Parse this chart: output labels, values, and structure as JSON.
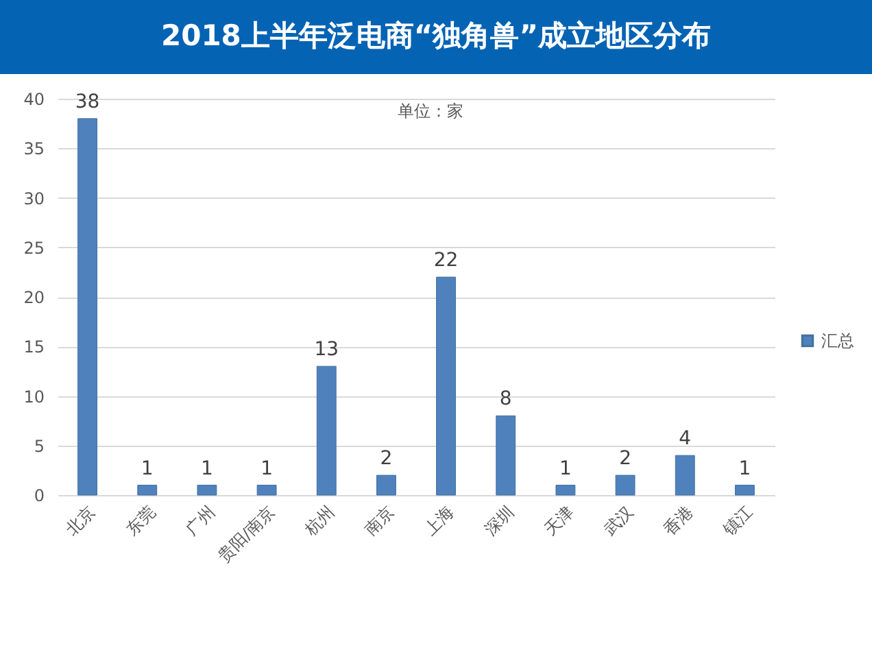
{
  "chart_data": {
    "type": "bar",
    "title": "2018上半年泛电商“独角兽”成立地区分布",
    "categories": [
      "北京",
      "东莞",
      "广州",
      "贵阳/南京",
      "杭州",
      "南京",
      "上海",
      "深圳",
      "天津",
      "武汉",
      "香港",
      "镇江"
    ],
    "series": [
      {
        "name": "汇总",
        "color": "#4f81bd",
        "values": [
          38,
          1,
          1,
          1,
          13,
          2,
          22,
          8,
          1,
          2,
          4,
          1
        ]
      }
    ],
    "ylim": [
      0,
      40
    ],
    "yticks": [
      0,
      5,
      10,
      15,
      20,
      25,
      30,
      35,
      40
    ],
    "grid": "y",
    "legend": "right",
    "data_labels": true,
    "annotations": [
      "单位：家"
    ]
  }
}
